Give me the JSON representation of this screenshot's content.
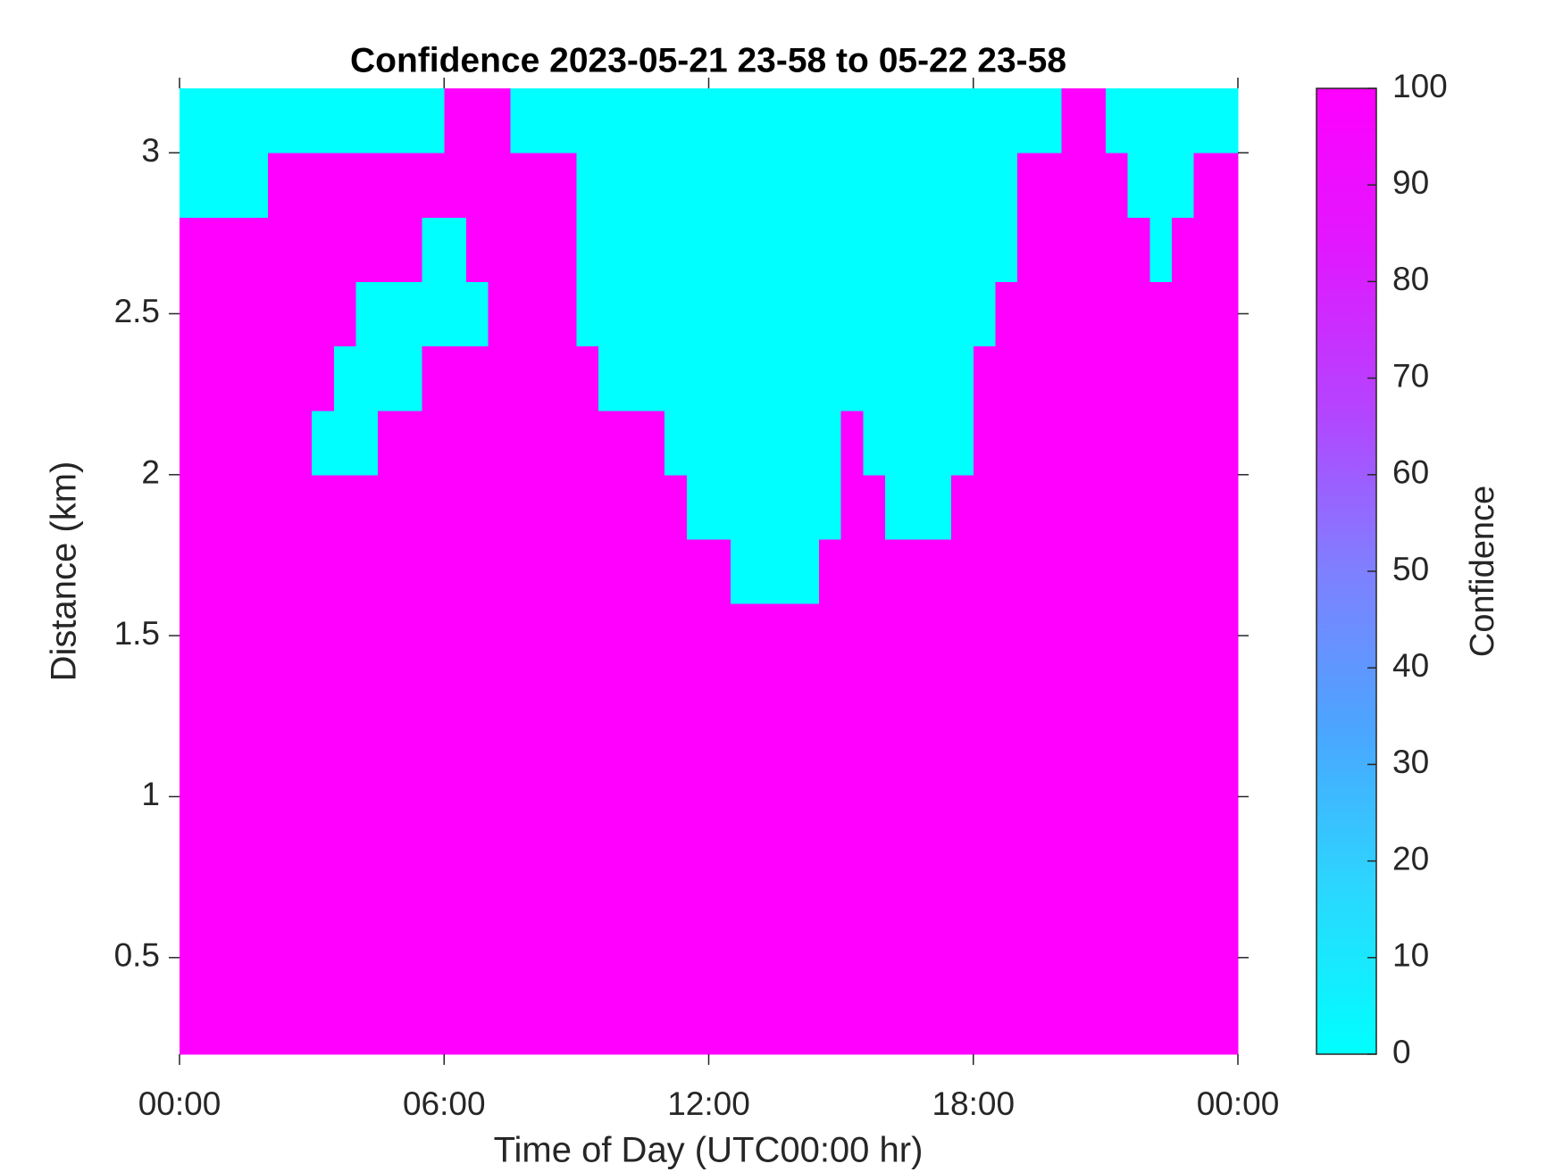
{
  "chart_data": {
    "type": "heatmap",
    "title": "Confidence 2023-05-21 23-58 to 05-22 23-58",
    "x_label": "Time of Day (UTC00:00 hr)",
    "y_label": "Distance (km)",
    "colorbar_label": "Confidence",
    "x": [
      0.25,
      0.75,
      1.25,
      1.75,
      2.25,
      2.75,
      3.25,
      3.75,
      4.25,
      4.75,
      5.25,
      5.75,
      6.25,
      6.75,
      7.25,
      7.75,
      8.25,
      8.75,
      9.25,
      9.75,
      10.25,
      10.75,
      11.25,
      11.75,
      12.25,
      12.75,
      13.25,
      13.75,
      14.25,
      14.75,
      15.25,
      15.75,
      16.25,
      16.75,
      17.25,
      17.75,
      18.25,
      18.75,
      19.25,
      19.75,
      20.25,
      20.75,
      21.25,
      21.75,
      22.25,
      22.75,
      23.25,
      23.75
    ],
    "y": [
      0.3,
      0.5,
      0.7,
      0.9,
      1.1,
      1.3,
      1.5,
      1.7,
      1.9,
      2.1,
      2.3,
      2.5,
      2.7,
      2.9,
      3.1
    ],
    "z": [
      [
        100,
        100,
        100,
        100,
        100,
        100,
        100,
        100,
        100,
        100,
        100,
        100,
        100,
        100,
        100,
        100,
        100,
        100,
        100,
        100,
        100,
        100,
        100,
        100,
        100,
        100,
        100,
        100,
        100,
        100,
        100,
        100,
        100,
        100,
        100,
        100,
        100,
        100,
        100,
        100,
        100,
        100,
        100,
        100,
        100,
        100,
        100,
        100
      ],
      [
        100,
        100,
        100,
        100,
        100,
        100,
        100,
        100,
        100,
        100,
        100,
        100,
        100,
        100,
        100,
        100,
        100,
        100,
        100,
        100,
        100,
        100,
        100,
        100,
        100,
        100,
        100,
        100,
        100,
        100,
        100,
        100,
        100,
        100,
        100,
        100,
        100,
        100,
        100,
        100,
        100,
        100,
        100,
        100,
        100,
        100,
        100,
        100
      ],
      [
        100,
        100,
        100,
        100,
        100,
        100,
        100,
        100,
        100,
        100,
        100,
        100,
        100,
        100,
        100,
        100,
        100,
        100,
        100,
        100,
        100,
        100,
        100,
        100,
        100,
        100,
        100,
        100,
        100,
        100,
        100,
        100,
        100,
        100,
        100,
        100,
        100,
        100,
        100,
        100,
        100,
        100,
        100,
        100,
        100,
        100,
        100,
        100
      ],
      [
        100,
        100,
        100,
        100,
        100,
        100,
        100,
        100,
        100,
        100,
        100,
        100,
        100,
        100,
        100,
        100,
        100,
        100,
        100,
        100,
        100,
        100,
        100,
        100,
        100,
        100,
        100,
        100,
        100,
        100,
        100,
        100,
        100,
        100,
        100,
        100,
        100,
        100,
        100,
        100,
        100,
        100,
        100,
        100,
        100,
        100,
        100,
        100
      ],
      [
        100,
        100,
        100,
        100,
        100,
        100,
        100,
        100,
        100,
        100,
        100,
        100,
        100,
        100,
        100,
        100,
        100,
        100,
        100,
        100,
        100,
        100,
        100,
        100,
        100,
        100,
        100,
        100,
        100,
        100,
        100,
        100,
        100,
        100,
        100,
        100,
        100,
        100,
        100,
        100,
        100,
        100,
        100,
        100,
        100,
        100,
        100,
        100
      ],
      [
        100,
        100,
        100,
        100,
        100,
        100,
        100,
        100,
        100,
        100,
        100,
        100,
        100,
        100,
        100,
        100,
        100,
        100,
        100,
        100,
        100,
        100,
        100,
        100,
        100,
        100,
        100,
        100,
        100,
        100,
        100,
        100,
        100,
        100,
        100,
        100,
        100,
        100,
        100,
        100,
        100,
        100,
        100,
        100,
        100,
        100,
        100,
        100
      ],
      [
        100,
        100,
        100,
        100,
        100,
        100,
        100,
        100,
        100,
        100,
        100,
        100,
        100,
        100,
        100,
        100,
        100,
        100,
        100,
        100,
        100,
        100,
        100,
        100,
        100,
        100,
        100,
        100,
        100,
        100,
        100,
        100,
        100,
        100,
        100,
        100,
        100,
        100,
        100,
        100,
        100,
        100,
        100,
        100,
        100,
        100,
        100,
        100
      ],
      [
        100,
        100,
        100,
        100,
        100,
        100,
        100,
        100,
        100,
        100,
        100,
        100,
        100,
        100,
        100,
        100,
        100,
        100,
        100,
        100,
        100,
        100,
        100,
        100,
        100,
        0,
        0,
        0,
        0,
        100,
        100,
        100,
        100,
        100,
        100,
        100,
        100,
        100,
        100,
        100,
        100,
        100,
        100,
        100,
        100,
        100,
        100,
        100
      ],
      [
        100,
        100,
        100,
        100,
        100,
        100,
        100,
        100,
        100,
        100,
        100,
        100,
        100,
        100,
        100,
        100,
        100,
        100,
        100,
        100,
        100,
        100,
        100,
        0,
        0,
        0,
        0,
        0,
        0,
        0,
        100,
        100,
        0,
        0,
        0,
        100,
        100,
        100,
        100,
        100,
        100,
        100,
        100,
        100,
        100,
        100,
        100,
        100
      ],
      [
        100,
        100,
        100,
        100,
        100,
        100,
        0,
        0,
        0,
        100,
        100,
        100,
        100,
        100,
        100,
        100,
        100,
        100,
        100,
        100,
        100,
        100,
        0,
        0,
        0,
        0,
        0,
        0,
        0,
        0,
        100,
        0,
        0,
        0,
        0,
        0,
        100,
        100,
        100,
        100,
        100,
        100,
        100,
        100,
        100,
        100,
        100,
        100
      ],
      [
        100,
        100,
        100,
        100,
        100,
        100,
        100,
        0,
        0,
        0,
        0,
        100,
        100,
        100,
        100,
        100,
        100,
        100,
        100,
        0,
        0,
        0,
        0,
        0,
        0,
        0,
        0,
        0,
        0,
        0,
        0,
        0,
        0,
        0,
        0,
        0,
        100,
        100,
        100,
        100,
        100,
        100,
        100,
        100,
        100,
        100,
        100,
        100
      ],
      [
        100,
        100,
        100,
        100,
        100,
        100,
        100,
        100,
        0,
        0,
        0,
        0,
        0,
        0,
        100,
        100,
        100,
        100,
        0,
        0,
        0,
        0,
        0,
        0,
        0,
        0,
        0,
        0,
        0,
        0,
        0,
        0,
        0,
        0,
        0,
        0,
        0,
        100,
        100,
        100,
        100,
        100,
        100,
        100,
        100,
        100,
        100,
        100
      ],
      [
        100,
        100,
        100,
        100,
        100,
        100,
        100,
        100,
        100,
        100,
        100,
        0,
        0,
        100,
        100,
        100,
        100,
        100,
        0,
        0,
        0,
        0,
        0,
        0,
        0,
        0,
        0,
        0,
        0,
        0,
        0,
        0,
        0,
        0,
        0,
        0,
        0,
        0,
        100,
        100,
        100,
        100,
        100,
        100,
        0,
        100,
        100,
        100
      ],
      [
        0,
        0,
        0,
        0,
        100,
        100,
        100,
        100,
        100,
        100,
        100,
        100,
        100,
        100,
        100,
        100,
        100,
        100,
        0,
        0,
        0,
        0,
        0,
        0,
        0,
        0,
        0,
        0,
        0,
        0,
        0,
        0,
        0,
        0,
        0,
        0,
        0,
        0,
        100,
        100,
        100,
        100,
        100,
        0,
        0,
        0,
        100,
        100
      ],
      [
        0,
        0,
        0,
        0,
        0,
        0,
        0,
        0,
        0,
        0,
        0,
        0,
        100,
        100,
        100,
        0,
        0,
        0,
        0,
        0,
        0,
        0,
        0,
        0,
        0,
        0,
        0,
        0,
        0,
        0,
        0,
        0,
        0,
        0,
        0,
        0,
        0,
        0,
        0,
        0,
        100,
        100,
        0,
        0,
        0,
        0,
        0,
        0
      ]
    ],
    "xlim": [
      0,
      24
    ],
    "xticks": [
      {
        "value": 0,
        "label": "00:00"
      },
      {
        "value": 6,
        "label": "06:00"
      },
      {
        "value": 12,
        "label": "12:00"
      },
      {
        "value": 18,
        "label": "18:00"
      },
      {
        "value": 24,
        "label": "00:00"
      }
    ],
    "ylim": [
      0.2,
      3.2
    ],
    "yticks": [
      0.5,
      1,
      1.5,
      2,
      2.5,
      3
    ],
    "clim": [
      0,
      100
    ],
    "cticks": [
      0,
      10,
      20,
      30,
      40,
      50,
      60,
      70,
      80,
      90,
      100
    ],
    "colormap": [
      "#00ffff",
      "#2ad8ff",
      "#4aa6ff",
      "#7f80ff",
      "#b444ff",
      "#e018ff",
      "#ff00ff"
    ]
  }
}
